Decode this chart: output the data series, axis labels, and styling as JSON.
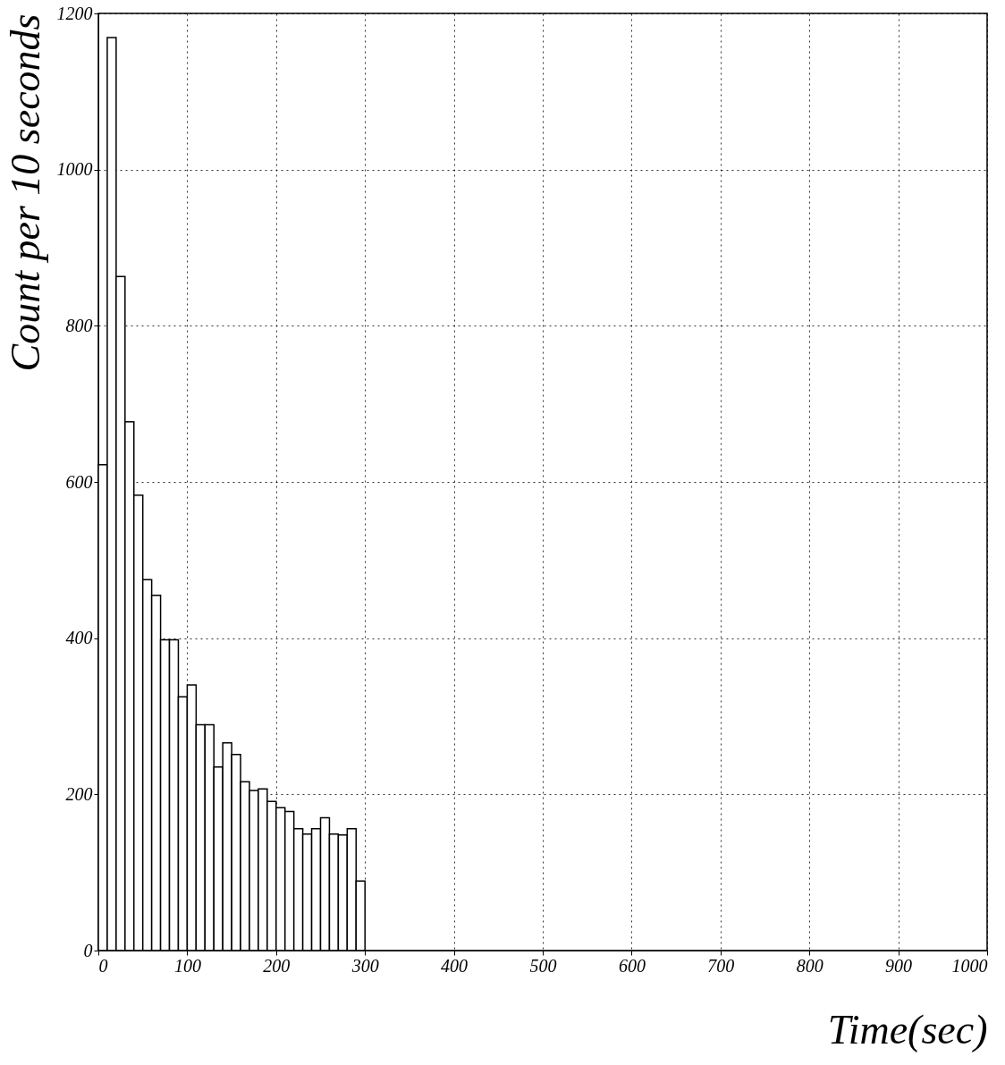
{
  "chart_data": {
    "type": "histogram",
    "xlabel": "Time(sec)",
    "ylabel": "Count per 10 seconds",
    "bins": [
      0,
      10,
      20,
      30,
      40,
      50,
      60,
      70,
      80,
      90,
      100,
      110,
      120,
      130,
      140,
      150,
      160,
      170,
      180,
      190,
      200,
      210,
      220,
      230,
      240,
      250,
      260,
      270,
      280,
      290,
      300
    ],
    "values": [
      622,
      1169,
      863,
      677,
      583,
      475,
      455,
      398,
      398,
      325,
      340,
      289,
      289,
      235,
      266,
      251,
      216,
      205,
      207,
      191,
      183,
      178,
      156,
      149,
      156,
      170,
      149,
      148,
      156,
      89
    ],
    "color": "#000000",
    "xlim": [
      0,
      1000
    ],
    "xticks": [
      0,
      100,
      200,
      300,
      400,
      500,
      600,
      700,
      800,
      900,
      1000
    ],
    "ylim": [
      0,
      1200
    ],
    "yticks": [
      0,
      200,
      400,
      600,
      800,
      1000,
      1200
    ],
    "grid": true
  }
}
